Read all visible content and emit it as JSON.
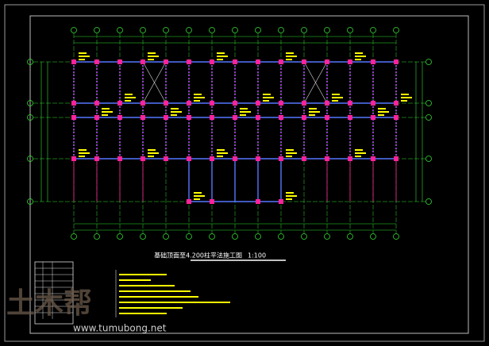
{
  "drawing": {
    "title": "基础顶面至4.200柱平法施工图",
    "scale": "1:100"
  },
  "watermark": {
    "logo": "土木帮",
    "url": "www.tumubong.net"
  }
}
